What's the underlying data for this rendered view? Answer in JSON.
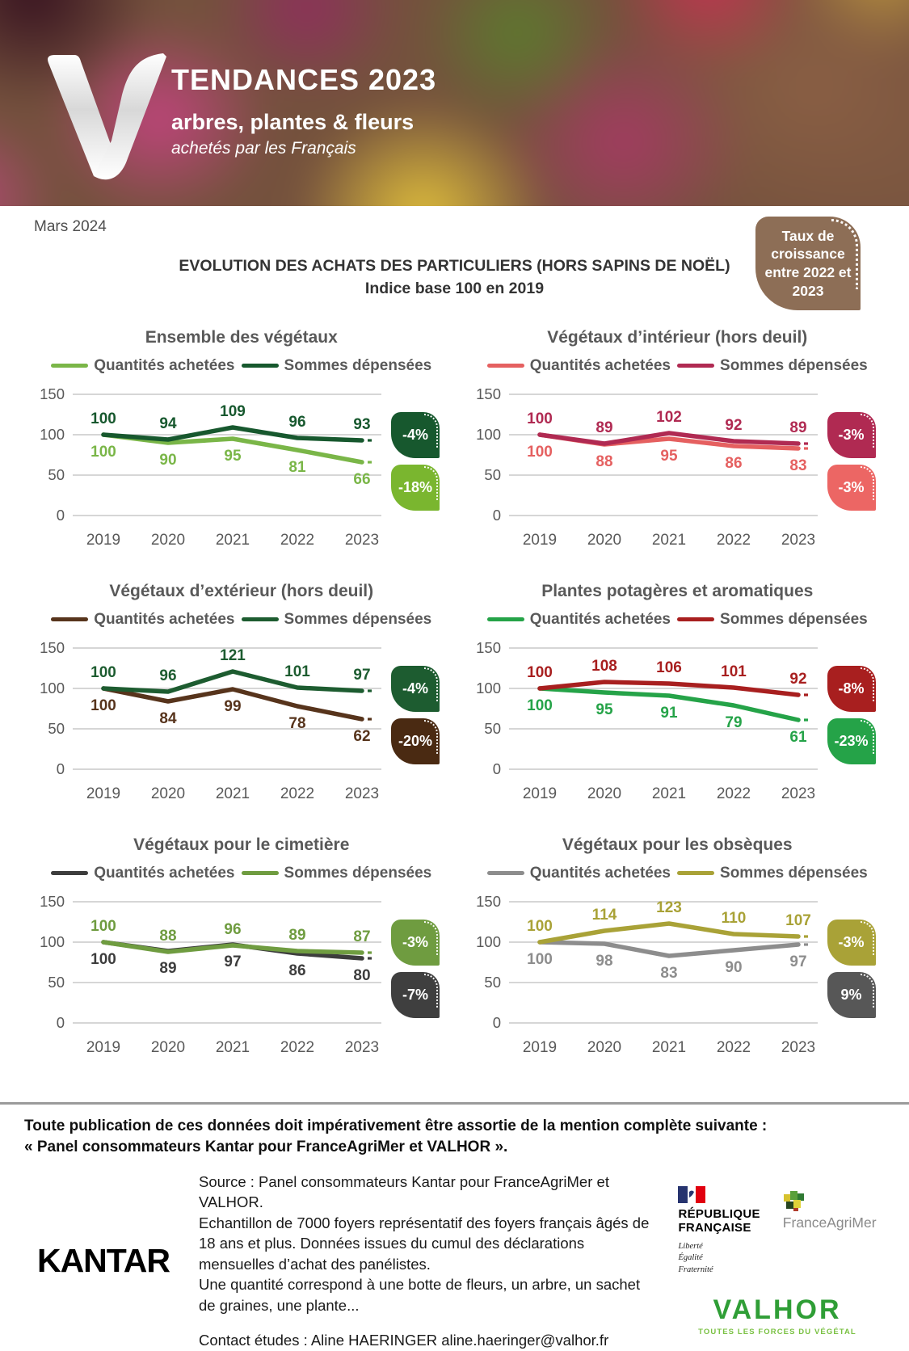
{
  "header": {
    "title": "TENDANCES 2023",
    "subtitle": "arbres, plantes & fleurs",
    "tagline": "achetés par les Français"
  },
  "date_label": "Mars 2024",
  "growth_badge": {
    "text": "Taux de croissance entre 2022 et 2023",
    "color": "#8d6e56"
  },
  "main_title": {
    "line1": "EVOLUTION DES ACHATS DES PARTICULIERS (HORS SAPINS DE NOËL)",
    "line2": "Indice base 100 en 2019"
  },
  "chart_data": [
    {
      "type": "line",
      "title": "Ensemble des végétaux",
      "categories": [
        "2019",
        "2020",
        "2021",
        "2022",
        "2023"
      ],
      "ylim": [
        0,
        150
      ],
      "yticks": [
        150,
        100,
        50,
        0
      ],
      "grid": true,
      "legend_position": "top",
      "series": [
        {
          "name": "Quantités achetées",
          "values": [
            100,
            90,
            95,
            81,
            66
          ],
          "color": "#7ab648",
          "label_position": "below",
          "badge": {
            "label": "-18%",
            "color": "#7ab62f"
          }
        },
        {
          "name": "Sommes dépensées",
          "values": [
            100,
            94,
            109,
            96,
            93
          ],
          "color": "#17582e",
          "label_position": "above",
          "badge": {
            "label": "-4%",
            "color": "#17582e"
          }
        }
      ]
    },
    {
      "type": "line",
      "title": "Végétaux d’intérieur (hors deuil)",
      "categories": [
        "2019",
        "2020",
        "2021",
        "2022",
        "2023"
      ],
      "ylim": [
        0,
        150
      ],
      "yticks": [
        150,
        100,
        50,
        0
      ],
      "grid": true,
      "legend_position": "top",
      "series": [
        {
          "name": "Quantités achetées",
          "values": [
            100,
            88,
            95,
            86,
            83
          ],
          "color": "#e56060",
          "label_position": "below",
          "badge": {
            "label": "-3%",
            "color": "#ec6664"
          }
        },
        {
          "name": "Sommes dépensées",
          "values": [
            100,
            89,
            102,
            92,
            89
          ],
          "color": "#b02a52",
          "label_position": "above",
          "badge": {
            "label": "-3%",
            "color": "#b02a52"
          }
        }
      ]
    },
    {
      "type": "line",
      "title": "Végétaux d’extérieur (hors deuil)",
      "categories": [
        "2019",
        "2020",
        "2021",
        "2022",
        "2023"
      ],
      "ylim": [
        0,
        150
      ],
      "yticks": [
        150,
        100,
        50,
        0
      ],
      "grid": true,
      "legend_position": "top",
      "series": [
        {
          "name": "Quantités achetées",
          "values": [
            100,
            84,
            99,
            78,
            62
          ],
          "color": "#57341c",
          "label_position": "below",
          "badge": {
            "label": "-20%",
            "color": "#4a2a12"
          }
        },
        {
          "name": "Sommes dépensées",
          "values": [
            100,
            96,
            121,
            101,
            97
          ],
          "color": "#1d5c30",
          "label_position": "above",
          "badge": {
            "label": "-4%",
            "color": "#1d5c30"
          }
        }
      ]
    },
    {
      "type": "line",
      "title": "Plantes potagères et aromatiques",
      "categories": [
        "2019",
        "2020",
        "2021",
        "2022",
        "2023"
      ],
      "ylim": [
        0,
        150
      ],
      "yticks": [
        150,
        100,
        50,
        0
      ],
      "grid": true,
      "legend_position": "top",
      "series": [
        {
          "name": "Quantités achetées",
          "values": [
            100,
            95,
            91,
            79,
            61
          ],
          "color": "#25a348",
          "label_position": "below",
          "badge": {
            "label": "-23%",
            "color": "#25a348"
          }
        },
        {
          "name": "Sommes dépensées",
          "values": [
            100,
            108,
            106,
            101,
            92
          ],
          "color": "#a81f1f",
          "label_position": "above",
          "badge": {
            "label": "-8%",
            "color": "#a81f1f"
          }
        }
      ]
    },
    {
      "type": "line",
      "title": "Végétaux pour le cimetière",
      "categories": [
        "2019",
        "2020",
        "2021",
        "2022",
        "2023"
      ],
      "ylim": [
        0,
        150
      ],
      "yticks": [
        150,
        100,
        50,
        0
      ],
      "grid": true,
      "legend_position": "top",
      "series": [
        {
          "name": "Quantités achetées",
          "values": [
            100,
            89,
            97,
            86,
            80
          ],
          "color": "#3d3d3d",
          "label_position": "below",
          "badge": {
            "label": "-7%",
            "color": "#3f3f3f"
          }
        },
        {
          "name": "Sommes dépensées",
          "values": [
            100,
            88,
            96,
            89,
            87
          ],
          "color": "#6f9c40",
          "label_position": "above",
          "badge": {
            "label": "-3%",
            "color": "#6f9c40"
          }
        }
      ]
    },
    {
      "type": "line",
      "title": "Végétaux pour les obsèques",
      "categories": [
        "2019",
        "2020",
        "2021",
        "2022",
        "2023"
      ],
      "ylim": [
        0,
        150
      ],
      "yticks": [
        150,
        100,
        50,
        0
      ],
      "grid": true,
      "legend_position": "top",
      "series": [
        {
          "name": "Quantités achetées",
          "values": [
            100,
            98,
            83,
            90,
            97
          ],
          "color": "#8d8d8d",
          "label_position": "below",
          "badge": {
            "label": "9%",
            "color": "#575757"
          }
        },
        {
          "name": "Sommes dépensées",
          "values": [
            100,
            114,
            123,
            110,
            107
          ],
          "color": "#a9a237",
          "label_position": "above",
          "badge": {
            "label": "-3%",
            "color": "#a9a237"
          }
        }
      ]
    }
  ],
  "footer": {
    "mention_line1": "Toute publication de ces données doit impérativement être assortie de la mention complète suivante :",
    "mention_line2": "« Panel consommateurs Kantar pour FranceAgriMer et VALHOR ».",
    "kantar_logo_text": "KANTAR",
    "source_lines": [
      "Source : Panel consommateurs Kantar pour FranceAgriMer et VALHOR.",
      "Echantillon de 7000 foyers représentatif des foyers français âgés de 18 ans et plus. Données issues du cumul des déclarations mensuelles d’achat des panélistes.",
      "Une quantité correspond à une botte de fleurs, un arbre, un sachet de graines, une plante..."
    ],
    "contact_line": "Contact études : Aline HAERINGER aline.haeringer@valhor.fr",
    "republique": {
      "name_line1": "RÉPUBLIQUE",
      "name_line2": "FRANÇAISE",
      "motto_line1": "Liberté",
      "motto_line2": "Égalité",
      "motto_line3": "Fraternité"
    },
    "franceagrimer_logo_text": "FranceAgriMer",
    "valhor_logo_text": "VALHOR",
    "valhor_tagline": "TOUTES LES FORCES DU VÉGÉTAL"
  }
}
